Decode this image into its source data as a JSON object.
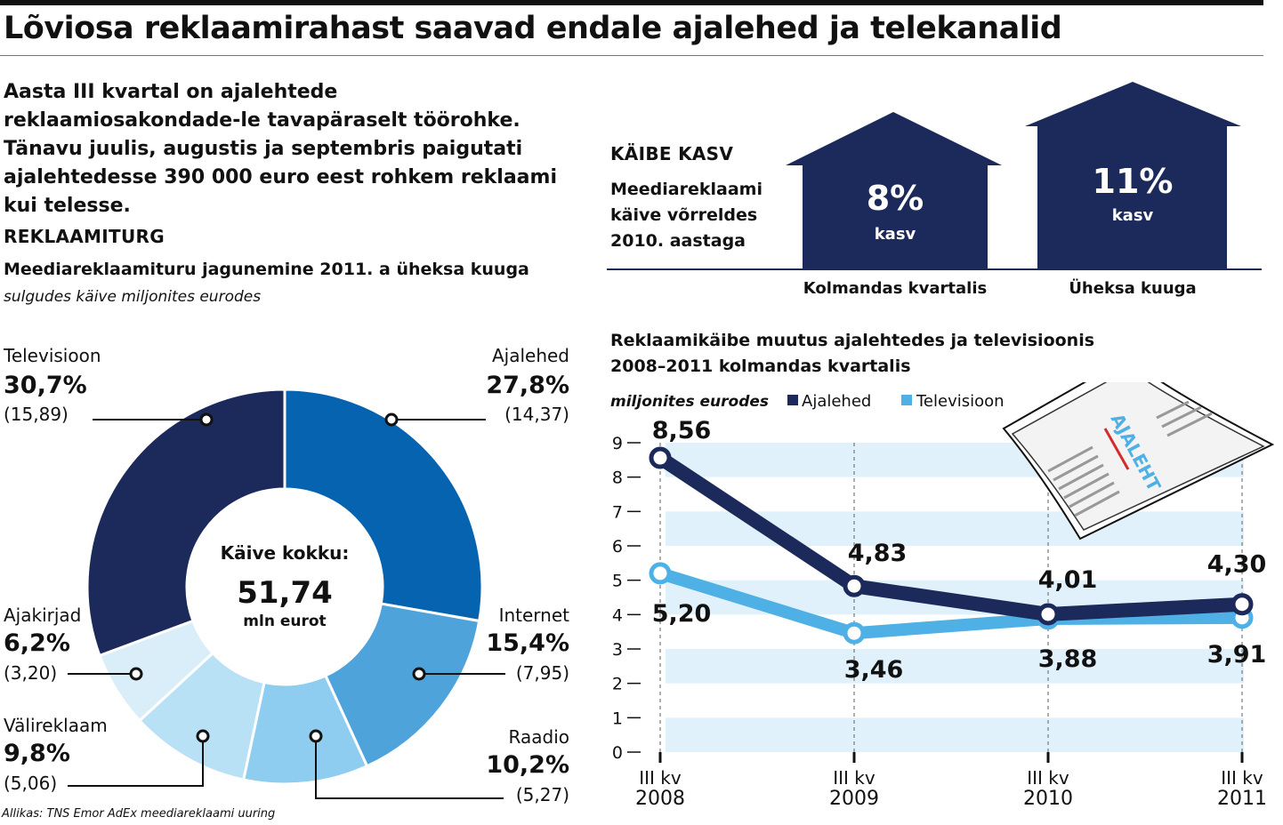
{
  "headline": "Lõviosa reklaamirahast saavad endale ajalehed ja telekanalid",
  "lead": "Aasta III kvartal on ajalehtede reklaamiosakondade-le tavapäraselt töörohke. Tänavu juulis, augustis ja septembris paigutati ajalehtedesse 390 000 euro eest rohkem reklaami kui telesse.",
  "market": {
    "section_title": "REKLAAMITURG",
    "subtitle": "Meediareklaamituru jagunemine 2011. a üheksa kuuga",
    "caption": "sulgudes käive miljonites eurodes",
    "center_label": "Käive kokku:",
    "center_value": "51,74",
    "center_unit": "mln eurot"
  },
  "growth": {
    "section_title": "KÄIBE KASV",
    "desc_line1": "Meediareklaami",
    "desc_line2": "käive võrreldes",
    "desc_line3": "2010. aastaga",
    "color": "#1b2a5a",
    "houses": [
      {
        "value": "8%",
        "sub": "kasv",
        "label": "Kolmandas kvartalis"
      },
      {
        "value": "11%",
        "sub": "kasv",
        "label": "Üheksa kuuga"
      }
    ]
  },
  "trend": {
    "title_line1": "Reklaamikäibe muutus ajalehtedes ja televisioonis",
    "title_line2": "2008–2011 kolmandas kvartalis",
    "caption": "miljonites eurodes",
    "newspaper_text": "AJALEHT"
  },
  "source": "Allikas: TNS Emor AdEx meediareklaami uuring",
  "chart_data": [
    {
      "type": "pie",
      "title": "Meediareklaamituru jagunemine 2011. a üheksa kuuga",
      "slices": [
        {
          "name": "Ajalehed",
          "percent": 27.8,
          "percent_label": "27,8%",
          "value": 14.37,
          "value_label": "(14,37)",
          "color": "#0563b0"
        },
        {
          "name": "Internet",
          "percent": 15.4,
          "percent_label": "15,4%",
          "value": 7.95,
          "value_label": "(7,95)",
          "color": "#4fa3db"
        },
        {
          "name": "Raadio",
          "percent": 10.2,
          "percent_label": "10,2%",
          "value": 5.27,
          "value_label": "(5,27)",
          "color": "#8ecdf0"
        },
        {
          "name": "Välireklaam",
          "percent": 9.8,
          "percent_label": "9,8%",
          "value": 5.06,
          "value_label": "(5,06)",
          "color": "#b9e1f6"
        },
        {
          "name": "Ajakirjad",
          "percent": 6.2,
          "percent_label": "6,2%",
          "value": 3.2,
          "value_label": "(3,20)",
          "color": "#daeefa"
        },
        {
          "name": "Televisioon",
          "percent": 30.7,
          "percent_label": "30,7%",
          "value": 15.89,
          "value_label": "(15,89)",
          "color": "#1b2a5a"
        }
      ]
    },
    {
      "type": "line",
      "title": "Reklaamikäibe muutus ajalehtedes ja televisioonis 2008–2011 kolmandas kvartalis",
      "ylabel": "miljonites eurodes",
      "ylim": [
        0,
        9
      ],
      "yticks": [
        0,
        1,
        2,
        3,
        4,
        5,
        6,
        7,
        8,
        9
      ],
      "grid": "alternating horizontal bands",
      "categories": [
        {
          "top": "III kv",
          "bottom": "2008"
        },
        {
          "top": "III kv",
          "bottom": "2009"
        },
        {
          "top": "III kv",
          "bottom": "2010"
        },
        {
          "top": "III kv",
          "bottom": "2011"
        }
      ],
      "series": [
        {
          "name": "Ajalehed",
          "color": "#1b2a5a",
          "values": [
            8.56,
            4.83,
            4.01,
            4.3
          ],
          "labels": [
            "8,56",
            "4,83",
            "4,01",
            "4,30"
          ]
        },
        {
          "name": "Televisioon",
          "color": "#4fb0e6",
          "values": [
            5.2,
            3.46,
            3.88,
            3.91
          ],
          "labels": [
            "5,20",
            "3,46",
            "3,88",
            "3,91"
          ]
        }
      ],
      "legend": "top"
    }
  ]
}
